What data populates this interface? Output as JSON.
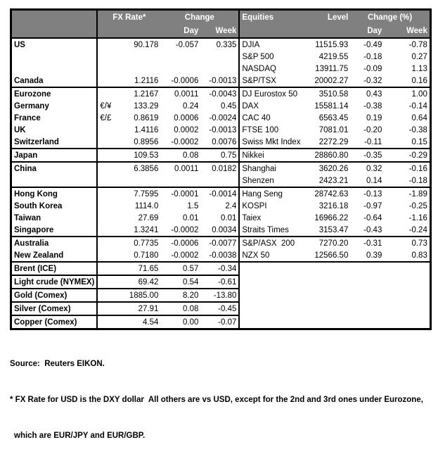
{
  "header": {
    "fx_rate": "FX Rate*",
    "change": "Change",
    "day": "Day",
    "week": "Week",
    "equities": "Equities",
    "level": "Level",
    "change_pct": "Change (%)"
  },
  "rows": [
    {
      "name": "US",
      "rate": "90.178",
      "day": "-0.057",
      "week": "0.335",
      "eq": "DJIA",
      "level": "11515.93",
      "eday": "-0.49",
      "eweek": "-0.78"
    },
    {
      "eq": "S&P 500",
      "level": "4219.55",
      "eday": "-0.18",
      "eweek": "0.27"
    },
    {
      "eq": "NASDAQ",
      "level": "13911.75",
      "eday": "-0.09",
      "eweek": "1.13"
    },
    {
      "name": "Canada",
      "rate": "1.2116",
      "day": "-0.0006",
      "week": "-0.0013",
      "eq": "S&P/TSX",
      "level": "20002.27",
      "eday": "-0.32",
      "eweek": "0.16",
      "sep": "full"
    },
    {
      "name": "Eurozone",
      "rate": "1.2167",
      "day": "0.0011",
      "week": "-0.0043",
      "eq": "DJ Eurostox 50",
      "level": "3510.58",
      "eday": "0.43",
      "eweek": "1.00"
    },
    {
      "name": "Germany",
      "indent": true,
      "sym": "€/¥",
      "rate": "133.29",
      "day": "0.24",
      "week": "0.45",
      "eq": "DAX",
      "level": "15581.14",
      "eday": "-0.38",
      "eweek": "-0.14"
    },
    {
      "name": "France",
      "indent": true,
      "sym": "€/£",
      "rate": "0.8619",
      "day": "0.0006",
      "week": "-0.0024",
      "eq": "CAC 40",
      "level": "6563.45",
      "eday": "0.19",
      "eweek": "0.64"
    },
    {
      "name": "UK",
      "rate": "1.4116",
      "day": "0.0002",
      "week": "-0.0013",
      "eq": "FTSE 100",
      "level": "7081.01",
      "eday": "-0.20",
      "eweek": "-0.38"
    },
    {
      "name": "Switzerland",
      "rate": "0.8956",
      "day": "-0.0002",
      "week": "0.0076",
      "eq": "Swiss Mkt Index",
      "level": "2272.29",
      "eday": "-0.11",
      "eweek": "0.15",
      "sep": "full"
    },
    {
      "name": "Japan",
      "rate": "109.53",
      "day": "0.08",
      "week": "0.75",
      "eq": "Nikkei",
      "level": "28860.80",
      "eday": "-0.35",
      "eweek": "-0.29",
      "sep": "full"
    },
    {
      "name": "China",
      "rate": "6.3856",
      "day": "0.0011",
      "week": "0.0182",
      "eq": "Shanghai",
      "level": "3620.26",
      "eday": "0.32",
      "eweek": "-0.16"
    },
    {
      "eq": "Shenzen",
      "level": "2423.21",
      "eday": "0.14",
      "eweek": "-0.18",
      "sep": "full"
    },
    {
      "name": "Hong Kong",
      "rate": "7.7595",
      "day": "-0.0001",
      "week": "-0.0014",
      "eq": "Hang Seng",
      "level": "28742.63",
      "eday": "-0.13",
      "eweek": "-1.89"
    },
    {
      "name": "South Korea",
      "rate": "1114.0",
      "day": "1.5",
      "week": "2.4",
      "eq": "KOSPI",
      "level": "3216.18",
      "eday": "-0.97",
      "eweek": "-0.25"
    },
    {
      "name": "Taiwan",
      "rate": "27.69",
      "day": "0.01",
      "week": "0.01",
      "eq": "Taiex",
      "level": "16966.22",
      "eday": "-0.64",
      "eweek": "-1.16"
    },
    {
      "name": "Singapore",
      "rate": "1.3241",
      "day": "-0.0002",
      "week": "0.0034",
      "eq": "Straits Times",
      "level": "3153.47",
      "eday": "-0.43",
      "eweek": "-0.24",
      "sep": "full"
    },
    {
      "name": "Australia",
      "rate": "0.7735",
      "day": "-0.0006",
      "week": "-0.0077",
      "eq": "S&P/ASX  200",
      "level": "7270.20",
      "eday": "-0.31",
      "eweek": "0.73"
    },
    {
      "name": "New Zealand",
      "rate": "0.7180",
      "day": "-0.0002",
      "week": "-0.0038",
      "eq": "NZX 50",
      "level": "12566.50",
      "eday": "0.39",
      "eweek": "0.83",
      "sep": "full"
    },
    {
      "name": "Brent (ICE)",
      "rate": "71.65",
      "day": "0.57",
      "week": "-0.34",
      "sep": "left"
    },
    {
      "name": "Light crude (NYMEX)",
      "rate": "69.42",
      "day": "0.54",
      "week": "-0.61",
      "sep": "left"
    },
    {
      "name": "Gold (Comex)",
      "rate": "1885.00",
      "day": "8.20",
      "week": "-13.80",
      "sep": "left"
    },
    {
      "name": "Silver (Comex)",
      "rate": "27.91",
      "day": "0.08",
      "week": "-0.45",
      "sep": "left"
    },
    {
      "name": "Copper (Comex)",
      "rate": "4.54",
      "day": "0.00",
      "week": "-0.07"
    }
  ],
  "footer": {
    "source": "Source:  Reuters EIKON.",
    "note1": "* FX Rate for USD is the DXY dollar  All others are vs USD, except for the 2nd and 3rd ones under Eurozone,",
    "note2": "which are EUR/JPY and EUR/GBP."
  },
  "colors": {
    "header_bg": "#808080",
    "header_text": "#ffffff",
    "border": "#000000",
    "text": "#000000"
  }
}
